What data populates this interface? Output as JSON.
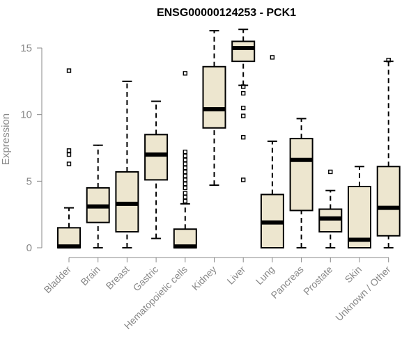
{
  "chart_data": {
    "type": "box",
    "title": "ENSG00000124253 - PCK1",
    "xlabel": "",
    "ylabel": "Expression",
    "ylim": [
      0,
      16.5
    ],
    "yticks": [
      0,
      5,
      10,
      15
    ],
    "box_fill": "#ede6cf",
    "box_stroke": "#000000",
    "categories": [
      "Bladder",
      "Brain",
      "Breast",
      "Gastric",
      "Hematopoietic cells",
      "Kidney",
      "Liver",
      "Lung",
      "Pancreas",
      "Prostate",
      "Skin",
      "Unknown / Other"
    ],
    "boxes": [
      {
        "category": "Bladder",
        "whisker_low": 0,
        "q1": 0,
        "median": 0.1,
        "q3": 1.5,
        "whisker_high": 3.0,
        "outliers": [
          6.3,
          7.0,
          7.3,
          13.3
        ]
      },
      {
        "category": "Brain",
        "whisker_low": 0,
        "q1": 1.9,
        "median": 3.1,
        "q3": 4.5,
        "whisker_high": 7.7,
        "outliers": []
      },
      {
        "category": "Breast",
        "whisker_low": 0,
        "q1": 1.2,
        "median": 3.3,
        "q3": 5.7,
        "whisker_high": 12.5,
        "outliers": []
      },
      {
        "category": "Gastric",
        "whisker_low": 0.7,
        "q1": 5.1,
        "median": 7.0,
        "q3": 8.5,
        "whisker_high": 11.0,
        "outliers": []
      },
      {
        "category": "Hematopoietic cells",
        "whisker_low": 0,
        "q1": 0,
        "median": 0.1,
        "q3": 1.4,
        "whisker_high": 3.3,
        "outliers": [
          3.5,
          3.8,
          4.1,
          4.5,
          4.8,
          5.1,
          5.4,
          5.7,
          6.0,
          6.3,
          6.6,
          6.9,
          7.2,
          13.1
        ]
      },
      {
        "category": "Kidney",
        "whisker_low": 4.7,
        "q1": 9.0,
        "median": 10.4,
        "q3": 13.6,
        "whisker_high": 16.3,
        "outliers": []
      },
      {
        "category": "Liver",
        "whisker_low": 12.2,
        "q1": 14.0,
        "median": 15.0,
        "q3": 15.5,
        "whisker_high": 16.4,
        "outliers": [
          5.1,
          8.3,
          9.9,
          10.5,
          11.6,
          12.1
        ]
      },
      {
        "category": "Lung",
        "whisker_low": 0,
        "q1": 0,
        "median": 1.9,
        "q3": 4.0,
        "whisker_high": 8.0,
        "outliers": [
          14.3
        ]
      },
      {
        "category": "Pancreas",
        "whisker_low": 0,
        "q1": 2.8,
        "median": 6.6,
        "q3": 8.2,
        "whisker_high": 9.7,
        "outliers": []
      },
      {
        "category": "Prostate",
        "whisker_low": 0,
        "q1": 1.2,
        "median": 2.2,
        "q3": 2.9,
        "whisker_high": 4.3,
        "outliers": [
          5.7
        ]
      },
      {
        "category": "Skin",
        "whisker_low": 0,
        "q1": 0,
        "median": 0.6,
        "q3": 4.6,
        "whisker_high": 6.1,
        "outliers": []
      },
      {
        "category": "Unknown / Other",
        "whisker_low": 0,
        "q1": 0.9,
        "median": 3.0,
        "q3": 6.1,
        "whisker_high": 14.0,
        "outliers": [
          14.1
        ]
      }
    ]
  }
}
